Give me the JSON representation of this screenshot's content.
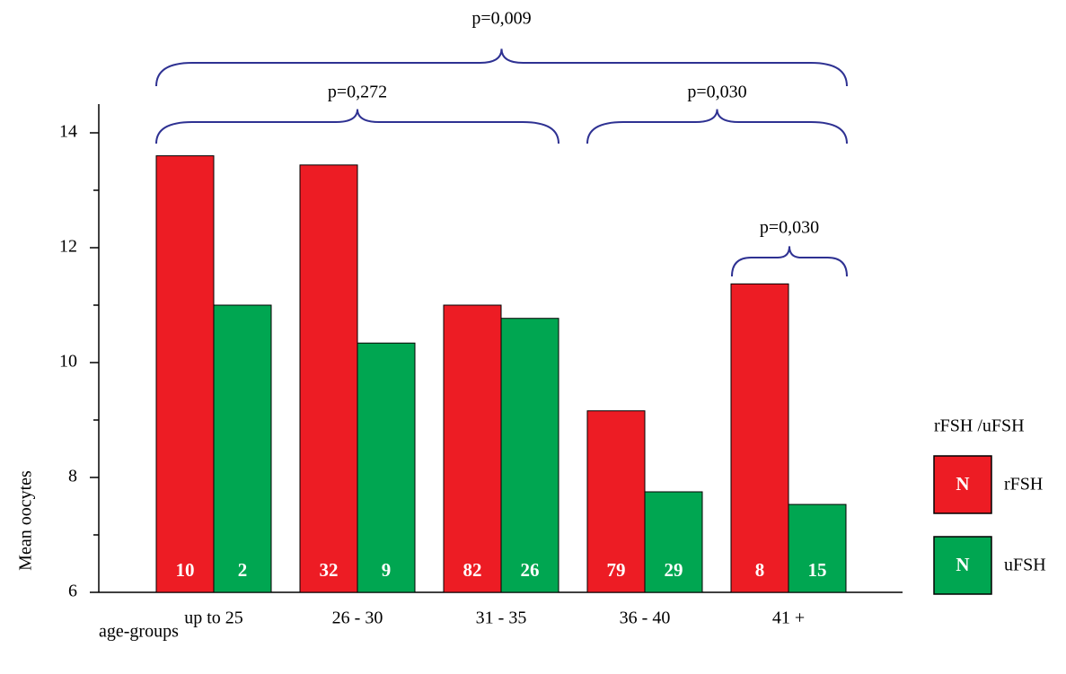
{
  "chart_data": {
    "type": "bar",
    "categories": [
      "up to 25",
      "26 - 30",
      "31 - 35",
      "36 - 40",
      "41 +"
    ],
    "series": [
      {
        "name": "rFSH",
        "color": "#ed1c24",
        "values": [
          13.6,
          13.44,
          11.0,
          9.16,
          11.37
        ],
        "n_labels": [
          "10",
          "32",
          "82",
          "79",
          "8"
        ]
      },
      {
        "name": "uFSH",
        "color": "#00a651",
        "values": [
          11.0,
          10.34,
          10.77,
          7.75,
          7.53
        ],
        "n_labels": [
          "2",
          "9",
          "26",
          "29",
          "15"
        ]
      }
    ],
    "ylim": [
      6,
      14.5
    ],
    "yticks": [
      6,
      8,
      10,
      12,
      14
    ],
    "minor_yticks": [
      7,
      9,
      11,
      13
    ],
    "y_label": "Mean oocytes",
    "x_label": "age-groups",
    "legend_title": "rFSH /uFSH",
    "legend_symbol": "N",
    "annotations": [
      "p=0,009",
      "p=0,272",
      "p=0,030",
      "p=0,030"
    ],
    "annotation_color": "#2e3192"
  }
}
